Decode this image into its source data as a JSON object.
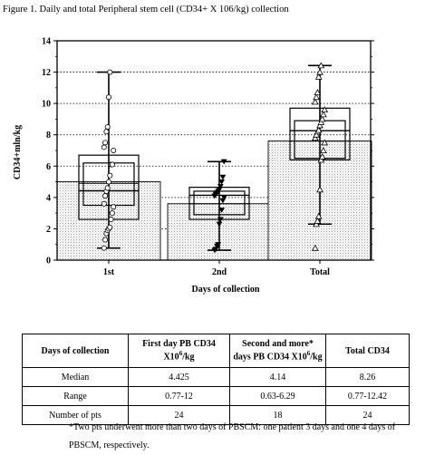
{
  "figure": {
    "title": "Figure 1. Daily and total Peripheral stem cell (CD34+ X 106/kg) collection"
  },
  "chart_data": {
    "type": "box",
    "ylabel": "CD34+mln/kg",
    "xlabel": "Days of collection",
    "ylim": [
      0,
      14
    ],
    "yticks": [
      0,
      2,
      4,
      6,
      8,
      10,
      12,
      14
    ],
    "grid": "dotted-horizontal",
    "groups": [
      {
        "category": "1st",
        "marker": "circle",
        "bar_mean": 5.0,
        "whisker_low": 0.77,
        "whisker_high": 12.0,
        "box_outer_low": 2.6,
        "box_outer_high": 6.7,
        "box_inner_low": 3.5,
        "box_inner_high": 6.2,
        "median": 4.425,
        "mean": 4.9,
        "points": [
          0.77,
          1.3,
          1.7,
          1.9,
          2.0,
          2.1,
          2.6,
          3.0,
          3.4,
          3.6,
          4.1,
          4.4,
          4.6,
          5.0,
          5.4,
          6.1,
          6.1,
          7.0,
          7.2,
          7.5,
          8.2,
          8.5,
          10.4,
          12.0
        ]
      },
      {
        "category": "2nd",
        "marker": "triangle-down",
        "bar_mean": 3.6,
        "whisker_low": 0.63,
        "whisker_high": 6.29,
        "box_outer_low": 2.6,
        "box_outer_high": 4.65,
        "box_inner_low": 2.9,
        "box_inner_high": 4.4,
        "median": 4.14,
        "mean": 3.6,
        "points": [
          0.63,
          0.7,
          0.9,
          1.0,
          2.3,
          2.6,
          3.2,
          3.8,
          4.0,
          4.1,
          4.2,
          4.3,
          4.4,
          4.5,
          4.7,
          5.0,
          5.3,
          6.29
        ]
      },
      {
        "category": "Total",
        "marker": "triangle-up",
        "bar_mean": 7.6,
        "whisker_low": 2.3,
        "whisker_high": 12.42,
        "box_outer_low": 6.4,
        "box_outer_high": 9.7,
        "box_inner_low": 6.5,
        "box_inner_high": 8.9,
        "median": 8.26,
        "mean": 7.6,
        "points": [
          0.77,
          2.3,
          2.5,
          2.8,
          4.5,
          6.4,
          6.6,
          7.0,
          7.5,
          7.8,
          8.0,
          8.2,
          8.3,
          8.6,
          8.8,
          9.0,
          9.3,
          9.6,
          10.1,
          10.4,
          10.7,
          11.7,
          12.0,
          12.42
        ]
      }
    ]
  },
  "table": {
    "headers": [
      "Days of collection",
      "First day PB CD34 X10",
      "Second and more* days PB CD34 X10",
      "Total CD34"
    ],
    "header_sup": "6",
    "header_suffix": "/kg",
    "rows": [
      {
        "label": "Median",
        "values": [
          "4.425",
          "4.14",
          "8.26"
        ]
      },
      {
        "label": "Range",
        "values": [
          "0.77-12",
          "0.63-6.29",
          "0.77-12.42"
        ]
      },
      {
        "label": "Number of pts",
        "values": [
          "24",
          "18",
          "24"
        ]
      }
    ]
  },
  "footnote": "*Two pts underwent more than two days of PBSCM: one patient 3 days and one 4 days of PBSCM, respectively."
}
